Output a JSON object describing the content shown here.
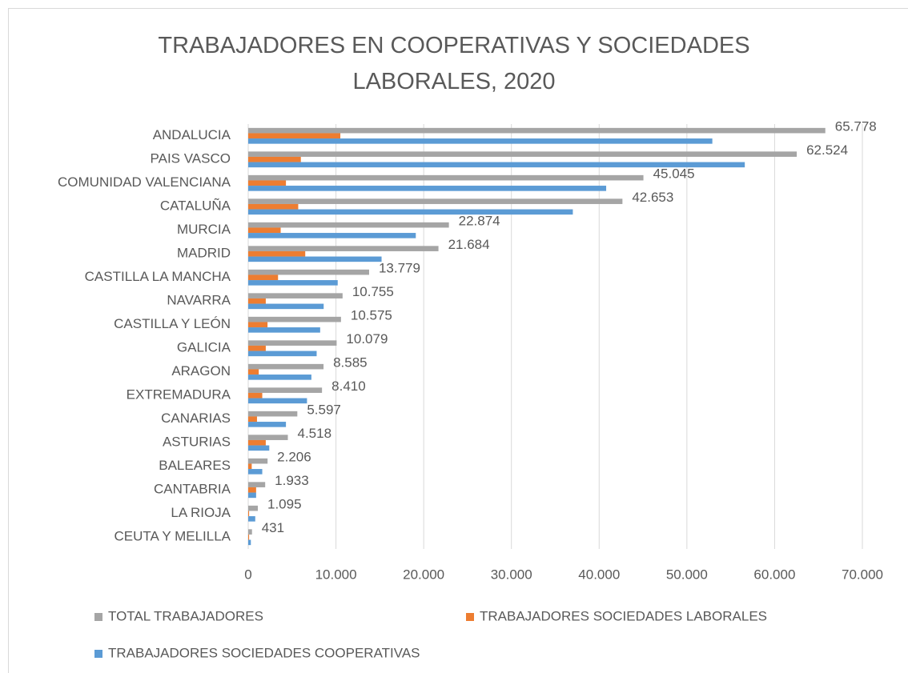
{
  "chart_data": {
    "type": "bar",
    "orientation": "horizontal",
    "title": "TRABAJADORES EN COOPERATIVAS Y SOCIEDADES LABORALES, 2020",
    "categories": [
      "ANDALUCIA",
      "PAIS VASCO",
      "COMUNIDAD VALENCIANA",
      "CATALUÑA",
      "MURCIA",
      "MADRID",
      "CASTILLA LA MANCHA",
      "NAVARRA",
      "CASTILLA Y LEÓN",
      "GALICIA",
      "ARAGON",
      "EXTREMADURA",
      "CANARIAS",
      "ASTURIAS",
      "BALEARES",
      "CANTABRIA",
      "LA RIOJA",
      "CEUTA Y MELILLA"
    ],
    "series": [
      {
        "name": "TOTAL TRABAJADORES",
        "color": "#a5a5a5",
        "values": [
          65778,
          62524,
          45045,
          42653,
          22874,
          21684,
          13779,
          10755,
          10575,
          10079,
          8585,
          8410,
          5597,
          4518,
          2206,
          1933,
          1095,
          431
        ],
        "value_labels": [
          "65.778",
          "62.524",
          "45.045",
          "42.653",
          "22.874",
          "21.684",
          "13.779",
          "10.755",
          "10.575",
          "10.079",
          "8.585",
          "8.410",
          "5.597",
          "4.518",
          "2.206",
          "1.933",
          "1.095",
          "431"
        ]
      },
      {
        "name": "TRABAJADORES SOCIEDADES LABORALES",
        "color": "#ed7d31",
        "values": [
          10500,
          6000,
          4300,
          5700,
          3700,
          6500,
          3400,
          2000,
          2200,
          2000,
          1200,
          1600,
          1000,
          2000,
          400,
          900,
          100,
          100
        ]
      },
      {
        "name": "TRABAJADORES SOCIEDADES COOPERATIVAS",
        "color": "#5b9bd5",
        "values": [
          52900,
          56600,
          40800,
          37000,
          19100,
          15200,
          10200,
          8600,
          8200,
          7800,
          7200,
          6700,
          4300,
          2400,
          1600,
          900,
          800,
          300
        ]
      }
    ],
    "xlim": [
      0,
      70000
    ],
    "xticks": [
      0,
      {
        "value": 10000,
        "label": "10.000"
      },
      {
        "value": 20000,
        "label": "20.000"
      },
      {
        "value": 30000,
        "label": "30.000"
      },
      {
        "value": 40000,
        "label": "40.000"
      },
      {
        "value": 50000,
        "label": "50.000"
      },
      {
        "value": 60000,
        "label": "60.000"
      },
      {
        "value": 70000,
        "label": "70.000"
      }
    ],
    "grid": true,
    "legend": "bottom"
  }
}
